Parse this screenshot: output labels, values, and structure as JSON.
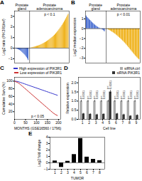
{
  "chart_data": [
    {
      "type": "bar",
      "title": "A",
      "ylabel": "Log2 ratio (PIK3R1/ref)",
      "categories": [
        null,
        null,
        null,
        null,
        null,
        null,
        null,
        null,
        null,
        null,
        null,
        null,
        null,
        null,
        null,
        null,
        null,
        null,
        null,
        null,
        null,
        null,
        null,
        null,
        null,
        null,
        null,
        null,
        null,
        null,
        null,
        null,
        null,
        null,
        null,
        null,
        null,
        null,
        null,
        null,
        null,
        null,
        null,
        null,
        null,
        null,
        null,
        null,
        null,
        null,
        null,
        null,
        null,
        null,
        null,
        null,
        null,
        null,
        null,
        null,
        null,
        null,
        null,
        null,
        null,
        null,
        null,
        null
      ],
      "series": [
        {
          "name": "Prostate gland",
          "values": [
            -0.03,
            -0.05,
            -0.08,
            -0.1,
            -0.13,
            -0.16,
            -0.2,
            -0.25,
            -0.3,
            -0.38,
            -0.45,
            -0.52,
            -0.6,
            -0.68,
            -0.78,
            -0.88,
            -1.0,
            -1.15,
            null,
            null,
            null,
            null,
            null,
            null,
            null,
            null,
            null,
            null,
            null,
            null,
            null,
            null,
            null,
            null,
            null,
            null,
            null,
            null,
            null,
            null,
            null,
            null,
            null,
            null,
            null,
            null,
            null,
            null,
            null,
            null,
            null,
            null,
            null,
            null,
            null,
            null,
            null,
            null,
            null,
            null,
            null,
            null,
            null,
            null,
            null,
            null,
            null,
            null
          ]
        },
        {
          "name": "Prostate adenocarcinoma",
          "values": [
            null,
            null,
            null,
            null,
            null,
            null,
            null,
            null,
            null,
            null,
            null,
            null,
            null,
            null,
            null,
            null,
            null,
            null,
            0.02,
            0.04,
            0.06,
            0.08,
            0.1,
            0.12,
            0.14,
            0.16,
            0.18,
            0.2,
            0.22,
            0.25,
            0.28,
            0.31,
            0.34,
            0.38,
            0.42,
            0.46,
            0.5,
            0.54,
            0.58,
            0.63,
            0.68,
            0.73,
            0.78,
            0.84,
            0.9,
            0.96,
            1.02,
            1.08,
            1.15,
            1.22,
            1.3,
            1.38,
            1.46,
            1.55,
            1.64,
            1.74,
            1.84,
            1.94,
            2.05,
            2.16,
            2.28,
            2.4,
            2.52,
            2.65,
            2.78,
            2.92,
            3.06,
            3.2
          ]
        }
      ],
      "annotations": [
        "p < 0.1"
      ],
      "ylim": [
        -1.4,
        3.5
      ],
      "yticks": [
        -1,
        0,
        1,
        2,
        3
      ],
      "tick_labels": "y"
    },
    {
      "type": "bar",
      "title": "B",
      "ylabel": "Log2 median expression",
      "categories": [
        null,
        null,
        null,
        null,
        null,
        null,
        null,
        null,
        null,
        null,
        null,
        null,
        null,
        null,
        null,
        null,
        null,
        null,
        null,
        null,
        null,
        null,
        null,
        null,
        null,
        null,
        null,
        null,
        null,
        null,
        null,
        null,
        null,
        null,
        null,
        null,
        null,
        null,
        null,
        null,
        null,
        null,
        null,
        null,
        null,
        null,
        null,
        null,
        null,
        null,
        null,
        null,
        null,
        null
      ],
      "series": [
        {
          "name": "Prostate gland",
          "values": [
            1.3,
            1.15,
            1.05,
            0.95,
            0.85,
            0.75,
            0.65,
            0.55,
            0.46,
            0.38,
            0.3,
            0.22,
            0.16,
            0.1,
            0.05,
            0.02,
            -0.05,
            -0.12,
            -0.2,
            -0.3,
            null,
            null,
            null,
            null,
            null,
            null,
            null,
            null,
            null,
            null,
            null,
            null,
            null,
            null,
            null,
            null,
            null,
            null,
            null,
            null,
            null,
            null,
            null,
            null,
            null,
            null,
            null,
            null,
            null,
            null,
            null,
            null,
            null,
            null
          ]
        },
        {
          "name": "Prostate adenocarcinoma",
          "values": [
            null,
            null,
            null,
            null,
            null,
            null,
            null,
            null,
            null,
            null,
            null,
            null,
            null,
            null,
            null,
            null,
            null,
            null,
            null,
            null,
            -0.05,
            -0.1,
            -0.16,
            -0.22,
            -0.28,
            -0.34,
            -0.4,
            -0.47,
            -0.54,
            -0.62,
            -0.7,
            -0.78,
            -0.87,
            -0.96,
            -1.05,
            -1.14,
            -1.24,
            -1.34,
            -1.44,
            -1.55,
            -1.66,
            -1.78,
            -1.9,
            -2.02,
            -2.14,
            -2.26,
            -2.38,
            -2.5,
            -2.62,
            -2.74,
            -2.85,
            -2.95,
            -3.05,
            -3.15
          ]
        }
      ],
      "annotations": [
        "p < 0.01"
      ],
      "ylim": [
        -3.5,
        1.8
      ],
      "yticks": [
        -3,
        -2,
        -1,
        0,
        1
      ],
      "tick_labels": "y"
    },
    {
      "type": "line",
      "title": "C",
      "xlabel": "MONTHS (GSE16560 / 1796)",
      "ylabel": "Cumulative Surv (%)",
      "x": [
        0,
        15,
        25,
        35,
        45,
        55,
        65,
        75,
        85,
        95,
        105,
        115,
        125,
        135,
        145,
        155,
        165,
        175,
        185,
        195
      ],
      "series": [
        {
          "name": "High expression of PIK3R1",
          "color": "#3333cc",
          "values": [
            100,
            99,
            97,
            95,
            93,
            91,
            89,
            87,
            85,
            83,
            81,
            79,
            77,
            75,
            73,
            71,
            69,
            67,
            65,
            63
          ]
        },
        {
          "name": "Low expression of PIK3R1",
          "color": "#cc3333",
          "values": [
            100,
            96,
            92,
            87,
            82,
            77,
            72,
            67,
            62,
            57,
            52,
            47,
            42,
            37,
            32,
            27,
            22,
            17,
            13,
            10
          ]
        }
      ],
      "annotations": [
        "p < 0.05"
      ],
      "xlim": [
        0,
        210
      ],
      "ylim": [
        0,
        110
      ],
      "xticks": [
        0,
        50,
        100,
        150,
        200
      ],
      "yticks": [
        20,
        40,
        60,
        80,
        100
      ],
      "legend": "upper right"
    },
    {
      "type": "bar",
      "title": "D",
      "xlabel": "Cell line",
      "ylabel": "Relative expression",
      "categories": [
        "1",
        "2",
        "3",
        "4",
        "5",
        "6",
        "7",
        "8",
        "9"
      ],
      "series": [
        {
          "name": "siRNA ctrl",
          "color": "#aaaaaa",
          "values": [
            1.0,
            1.0,
            1.0,
            1.0,
            1.0,
            1.0,
            1.0,
            1.0,
            1.0
          ],
          "error": [
            0.05,
            0.05,
            0.05,
            0.05,
            0.05,
            0.05,
            0.05,
            0.05,
            0.05
          ]
        },
        {
          "name": "siRNA PIK3R1",
          "color": "#333333",
          "values": [
            0.3,
            0.28,
            0.25,
            0.28,
            1.5,
            0.3,
            0.25,
            0.18,
            0.22
          ],
          "error": [
            0.04,
            0.04,
            0.04,
            0.04,
            0.1,
            0.04,
            0.04,
            0.03,
            0.03
          ]
        }
      ],
      "annotations": [
        "p<\n0.0001",
        "p<\n0.0001",
        "p<\n0.0001",
        "p<\n0.0001",
        "p<\n0.0001",
        "p<\n0.0001",
        "p<\n0.0001",
        "p<\n0.0001",
        "p<\n0.0001"
      ],
      "ylim": [
        0,
        2.3
      ],
      "yticks": [
        {
          "value": 0,
          "label": "0.0"
        },
        0.5,
        {
          "value": 1,
          "label": "1.0"
        },
        1.5,
        {
          "value": 2,
          "label": "2.0"
        }
      ],
      "legend": "upper right"
    },
    {
      "type": "bar",
      "title": "E",
      "xlabel": "TUMOR",
      "ylabel": "Log2 fold change",
      "categories": [
        "1",
        "2",
        "3",
        "4",
        "5",
        "6",
        "7",
        "8"
      ],
      "values": [
        0.3,
        -0.7,
        0.25,
        1.3,
        3.8,
        0.9,
        0.55,
        0.35
      ],
      "color": "black",
      "ylim": [
        -1,
        4
      ],
      "yticks": [
        -1,
        0,
        1,
        2,
        3,
        4
      ]
    }
  ]
}
